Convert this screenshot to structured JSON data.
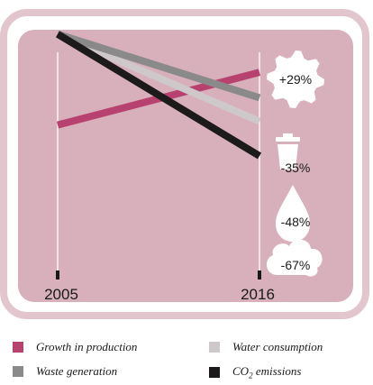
{
  "chart_data": {
    "type": "line",
    "x": [
      "2005",
      "2016"
    ],
    "x_tick_labels": [
      "2005",
      "2016"
    ],
    "ylim": [
      -80,
      40
    ],
    "grid": false,
    "legend_position": "bottom",
    "series": [
      {
        "name": "Growth in production",
        "values": [
          0,
          29
        ],
        "label": "+29%",
        "icon": "gear-icon",
        "color": "#b8426f"
      },
      {
        "name": "Waste generation",
        "values": [
          50,
          15
        ],
        "label": "-35%",
        "icon": "trash-bin-icon",
        "color": "#8a8a8a"
      },
      {
        "name": "Water consumption",
        "values": [
          50,
          2
        ],
        "label": "-48%",
        "icon": "water-drop-icon",
        "color": "#cfc8cb"
      },
      {
        "name": "CO2 emissions",
        "values": [
          50,
          -17
        ],
        "label": "-67%",
        "icon": "cloud-icon",
        "color": "#1c1a1b"
      }
    ]
  },
  "legend": [
    {
      "name": "Growth in production",
      "color": "#b8426f"
    },
    {
      "name": "Water consumption",
      "color": "#cfc8cb"
    },
    {
      "name": "Waste generation",
      "color": "#8a8a8a"
    },
    {
      "name_prefix": "CO",
      "name_sub": "2",
      "name_suffix": " emissions",
      "color": "#1c1a1b"
    }
  ],
  "colors": {
    "frame": "#e3c5cd",
    "panel": "#d7b0bb",
    "axis": "#ffffff"
  }
}
